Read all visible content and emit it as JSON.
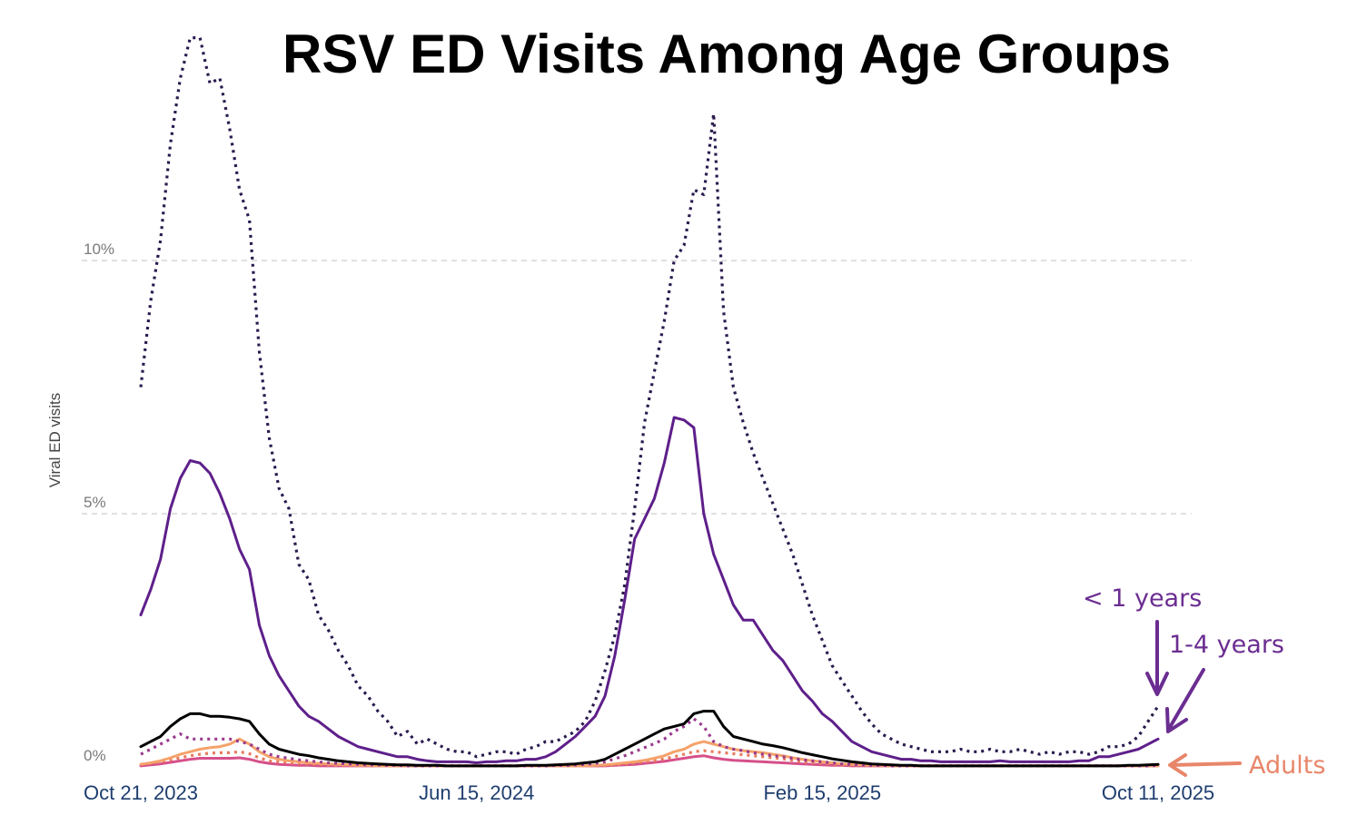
{
  "chart_data": {
    "type": "line",
    "title": "RSV ED Visits Among Age Groups",
    "ylabel": "Viral ED visits",
    "ylim": [
      0,
      14.5
    ],
    "yticks": [
      0,
      5,
      10
    ],
    "ytick_labels": [
      "0%",
      "5%",
      "10%"
    ],
    "xlim": [
      "2023-10-21",
      "2025-10-11"
    ],
    "xticks": [
      "2023-10-21",
      "2024-06-15",
      "2025-02-15",
      "2025-10-11"
    ],
    "xtick_labels": [
      "Oct 21, 2023",
      "Jun 15, 2024",
      "Feb 15, 2025",
      "Oct 11, 2025"
    ],
    "grid": true,
    "x": [
      "2023-10-21",
      "2023-10-28",
      "2023-11-04",
      "2023-11-11",
      "2023-11-18",
      "2023-11-25",
      "2023-12-02",
      "2023-12-09",
      "2023-12-16",
      "2023-12-23",
      "2023-12-30",
      "2024-01-06",
      "2024-01-13",
      "2024-01-20",
      "2024-01-27",
      "2024-02-03",
      "2024-02-10",
      "2024-02-17",
      "2024-02-24",
      "2024-03-02",
      "2024-03-09",
      "2024-03-16",
      "2024-03-23",
      "2024-03-30",
      "2024-04-06",
      "2024-04-13",
      "2024-04-20",
      "2024-04-27",
      "2024-05-04",
      "2024-05-11",
      "2024-05-18",
      "2024-05-25",
      "2024-06-01",
      "2024-06-08",
      "2024-06-15",
      "2024-06-22",
      "2024-06-29",
      "2024-07-06",
      "2024-07-13",
      "2024-07-20",
      "2024-07-27",
      "2024-08-03",
      "2024-08-10",
      "2024-08-17",
      "2024-08-24",
      "2024-08-31",
      "2024-09-07",
      "2024-09-14",
      "2024-09-21",
      "2024-09-28",
      "2024-10-05",
      "2024-10-12",
      "2024-10-19",
      "2024-10-26",
      "2024-11-02",
      "2024-11-09",
      "2024-11-16",
      "2024-11-23",
      "2024-11-30",
      "2024-12-07",
      "2024-12-14",
      "2024-12-21",
      "2024-12-28",
      "2025-01-04",
      "2025-01-11",
      "2025-01-18",
      "2025-01-25",
      "2025-02-01",
      "2025-02-08",
      "2025-02-15",
      "2025-02-22",
      "2025-03-01",
      "2025-03-08",
      "2025-03-15",
      "2025-03-22",
      "2025-03-29",
      "2025-04-05",
      "2025-04-12",
      "2025-04-19",
      "2025-04-26",
      "2025-05-03",
      "2025-05-10",
      "2025-05-17",
      "2025-05-24",
      "2025-05-31",
      "2025-06-07",
      "2025-06-14",
      "2025-06-21",
      "2025-06-28",
      "2025-07-05",
      "2025-07-12",
      "2025-07-19",
      "2025-07-26",
      "2025-08-02",
      "2025-08-09",
      "2025-08-16",
      "2025-08-23",
      "2025-08-30",
      "2025-09-06",
      "2025-09-13",
      "2025-09-20",
      "2025-09-27",
      "2025-10-04",
      "2025-10-11"
    ],
    "series": [
      {
        "name": "< 1 years",
        "color": "#2a1a4e",
        "dash": "dotted",
        "values": [
          7.5,
          9.2,
          10.4,
          12.3,
          13.6,
          14.4,
          14.4,
          13.5,
          13.6,
          12.6,
          11.4,
          10.8,
          8.2,
          6.5,
          5.5,
          5.1,
          4.0,
          3.7,
          3.0,
          2.7,
          2.3,
          2.0,
          1.6,
          1.4,
          1.1,
          0.9,
          0.6,
          0.7,
          0.45,
          0.55,
          0.45,
          0.35,
          0.3,
          0.3,
          0.2,
          0.25,
          0.3,
          0.3,
          0.25,
          0.35,
          0.4,
          0.5,
          0.5,
          0.6,
          0.7,
          0.9,
          1.3,
          1.9,
          2.6,
          3.6,
          5.1,
          6.8,
          7.8,
          8.8,
          10.0,
          10.3,
          11.4,
          11.3,
          12.9,
          9.0,
          7.5,
          6.8,
          6.2,
          5.7,
          5.2,
          4.7,
          4.2,
          3.6,
          3.0,
          2.5,
          2.0,
          1.7,
          1.4,
          1.1,
          0.85,
          0.65,
          0.55,
          0.45,
          0.4,
          0.35,
          0.3,
          0.3,
          0.3,
          0.35,
          0.3,
          0.3,
          0.35,
          0.3,
          0.3,
          0.35,
          0.3,
          0.25,
          0.3,
          0.25,
          0.3,
          0.3,
          0.25,
          0.3,
          0.4,
          0.4,
          0.45,
          0.6,
          0.9,
          1.2
        ]
      },
      {
        "name": "1-4 years",
        "color": "#5e1f8a",
        "dash": "solid",
        "values": [
          3.0,
          3.5,
          4.1,
          5.1,
          5.7,
          6.05,
          6.0,
          5.8,
          5.4,
          4.9,
          4.3,
          3.9,
          2.8,
          2.2,
          1.8,
          1.5,
          1.2,
          1.0,
          0.9,
          0.75,
          0.6,
          0.5,
          0.4,
          0.35,
          0.3,
          0.25,
          0.2,
          0.2,
          0.15,
          0.12,
          0.1,
          0.1,
          0.1,
          0.1,
          0.08,
          0.1,
          0.1,
          0.12,
          0.12,
          0.15,
          0.15,
          0.2,
          0.3,
          0.45,
          0.6,
          0.8,
          1.0,
          1.4,
          2.2,
          3.3,
          4.5,
          4.9,
          5.3,
          6.0,
          6.9,
          6.85,
          6.7,
          5.0,
          4.2,
          3.7,
          3.2,
          2.9,
          2.9,
          2.6,
          2.3,
          2.1,
          1.8,
          1.5,
          1.3,
          1.05,
          0.9,
          0.7,
          0.5,
          0.4,
          0.3,
          0.25,
          0.2,
          0.15,
          0.15,
          0.12,
          0.12,
          0.1,
          0.1,
          0.1,
          0.1,
          0.1,
          0.1,
          0.12,
          0.1,
          0.1,
          0.1,
          0.1,
          0.1,
          0.1,
          0.1,
          0.12,
          0.12,
          0.2,
          0.2,
          0.25,
          0.3,
          0.35,
          0.45,
          0.55
        ]
      },
      {
        "name": "",
        "color": "#000000",
        "dash": "solid",
        "values": [
          0.4,
          0.5,
          0.6,
          0.8,
          0.95,
          1.05,
          1.05,
          1.0,
          1.0,
          0.98,
          0.95,
          0.9,
          0.65,
          0.45,
          0.35,
          0.3,
          0.25,
          0.22,
          0.18,
          0.15,
          0.12,
          0.1,
          0.08,
          0.07,
          0.06,
          0.05,
          0.04,
          0.04,
          0.03,
          0.03,
          0.03,
          0.02,
          0.02,
          0.02,
          0.02,
          0.02,
          0.02,
          0.02,
          0.02,
          0.03,
          0.03,
          0.03,
          0.04,
          0.05,
          0.06,
          0.08,
          0.1,
          0.15,
          0.25,
          0.35,
          0.45,
          0.55,
          0.65,
          0.75,
          0.8,
          0.85,
          1.05,
          1.1,
          1.1,
          0.8,
          0.6,
          0.55,
          0.5,
          0.45,
          0.42,
          0.38,
          0.33,
          0.28,
          0.24,
          0.2,
          0.16,
          0.13,
          0.1,
          0.08,
          0.06,
          0.05,
          0.04,
          0.03,
          0.03,
          0.02,
          0.02,
          0.02,
          0.02,
          0.02,
          0.02,
          0.02,
          0.02,
          0.02,
          0.02,
          0.02,
          0.02,
          0.02,
          0.02,
          0.02,
          0.02,
          0.02,
          0.02,
          0.02,
          0.02,
          0.02,
          0.03,
          0.03,
          0.04,
          0.05
        ]
      },
      {
        "name": "",
        "color": "#9a3a8e",
        "dash": "dotted",
        "values": [
          0.25,
          0.35,
          0.45,
          0.55,
          0.65,
          0.55,
          0.55,
          0.55,
          0.55,
          0.55,
          0.5,
          0.45,
          0.35,
          0.25,
          0.2,
          0.17,
          0.14,
          0.12,
          0.1,
          0.08,
          0.07,
          0.06,
          0.05,
          0.04,
          0.04,
          0.03,
          0.03,
          0.02,
          0.02,
          0.02,
          0.02,
          0.02,
          0.02,
          0.02,
          0.02,
          0.02,
          0.02,
          0.02,
          0.02,
          0.02,
          0.02,
          0.02,
          0.03,
          0.03,
          0.04,
          0.05,
          0.07,
          0.1,
          0.16,
          0.22,
          0.3,
          0.38,
          0.46,
          0.55,
          0.7,
          0.8,
          0.95,
          0.8,
          0.5,
          0.4,
          0.35,
          0.32,
          0.28,
          0.25,
          0.22,
          0.2,
          0.17,
          0.14,
          0.12,
          0.1,
          0.08,
          0.06,
          0.05,
          0.04,
          0.03,
          0.03,
          0.02,
          0.02,
          0.02,
          0.02,
          0.02,
          0.02,
          0.02,
          0.02,
          0.02,
          0.02,
          0.02,
          0.02,
          0.02,
          0.02,
          0.02,
          0.02,
          0.02,
          0.02,
          0.02,
          0.02,
          0.02,
          0.02,
          0.02,
          0.02,
          0.02,
          0.02,
          0.02,
          0.03
        ]
      },
      {
        "name": "",
        "color": "#f5a26a",
        "dash": "solid",
        "values": [
          0.05,
          0.08,
          0.12,
          0.18,
          0.25,
          0.3,
          0.35,
          0.38,
          0.4,
          0.45,
          0.55,
          0.45,
          0.3,
          0.2,
          0.15,
          0.12,
          0.1,
          0.08,
          0.07,
          0.06,
          0.05,
          0.04,
          0.03,
          0.03,
          0.02,
          0.02,
          0.02,
          0.02,
          0.02,
          0.02,
          0.02,
          0.02,
          0.02,
          0.02,
          0.02,
          0.02,
          0.02,
          0.02,
          0.02,
          0.02,
          0.02,
          0.02,
          0.02,
          0.02,
          0.02,
          0.02,
          0.03,
          0.04,
          0.06,
          0.08,
          0.1,
          0.13,
          0.17,
          0.22,
          0.3,
          0.35,
          0.45,
          0.5,
          0.45,
          0.4,
          0.35,
          0.32,
          0.3,
          0.28,
          0.25,
          0.22,
          0.18,
          0.15,
          0.12,
          0.1,
          0.08,
          0.06,
          0.05,
          0.04,
          0.03,
          0.03,
          0.02,
          0.02,
          0.02,
          0.02,
          0.02,
          0.02,
          0.02,
          0.02,
          0.02,
          0.02,
          0.02,
          0.02,
          0.02,
          0.02,
          0.02,
          0.02,
          0.02,
          0.02,
          0.02,
          0.02,
          0.02,
          0.02,
          0.02,
          0.02,
          0.02,
          0.02,
          0.02,
          0.02
        ]
      },
      {
        "name": "",
        "color": "#e8795c",
        "dash": "dotted",
        "values": [
          0.05,
          0.07,
          0.1,
          0.14,
          0.18,
          0.22,
          0.25,
          0.27,
          0.28,
          0.28,
          0.3,
          0.26,
          0.18,
          0.12,
          0.1,
          0.08,
          0.07,
          0.06,
          0.05,
          0.04,
          0.03,
          0.03,
          0.02,
          0.02,
          0.02,
          0.02,
          0.02,
          0.02,
          0.02,
          0.02,
          0.02,
          0.02,
          0.02,
          0.02,
          0.02,
          0.02,
          0.02,
          0.02,
          0.02,
          0.02,
          0.02,
          0.02,
          0.02,
          0.02,
          0.02,
          0.02,
          0.02,
          0.03,
          0.04,
          0.06,
          0.08,
          0.1,
          0.12,
          0.16,
          0.2,
          0.25,
          0.3,
          0.32,
          0.3,
          0.28,
          0.26,
          0.24,
          0.22,
          0.2,
          0.18,
          0.16,
          0.13,
          0.1,
          0.08,
          0.07,
          0.05,
          0.04,
          0.03,
          0.03,
          0.02,
          0.02,
          0.02,
          0.02,
          0.02,
          0.02,
          0.02,
          0.02,
          0.02,
          0.02,
          0.02,
          0.02,
          0.02,
          0.02,
          0.02,
          0.02,
          0.02,
          0.02,
          0.02,
          0.02,
          0.02,
          0.02,
          0.02,
          0.02,
          0.02,
          0.02,
          0.02,
          0.02,
          0.02,
          0.02
        ]
      },
      {
        "name": "",
        "color": "#d6508a",
        "dash": "solid",
        "values": [
          0.02,
          0.04,
          0.06,
          0.09,
          0.12,
          0.15,
          0.17,
          0.17,
          0.17,
          0.17,
          0.18,
          0.15,
          0.1,
          0.07,
          0.05,
          0.04,
          0.03,
          0.03,
          0.02,
          0.02,
          0.02,
          0.02,
          0.02,
          0.02,
          0.02,
          0.02,
          0.02,
          0.02,
          0.02,
          0.02,
          0.02,
          0.02,
          0.02,
          0.02,
          0.02,
          0.02,
          0.02,
          0.02,
          0.02,
          0.02,
          0.02,
          0.02,
          0.02,
          0.02,
          0.02,
          0.02,
          0.02,
          0.02,
          0.03,
          0.04,
          0.05,
          0.07,
          0.09,
          0.11,
          0.14,
          0.17,
          0.2,
          0.22,
          0.18,
          0.15,
          0.13,
          0.12,
          0.11,
          0.1,
          0.09,
          0.08,
          0.07,
          0.06,
          0.05,
          0.04,
          0.03,
          0.03,
          0.02,
          0.02,
          0.02,
          0.02,
          0.02,
          0.02,
          0.02,
          0.02,
          0.02,
          0.02,
          0.02,
          0.02,
          0.02,
          0.02,
          0.02,
          0.02,
          0.02,
          0.02,
          0.02,
          0.02,
          0.02,
          0.02,
          0.02,
          0.02,
          0.02,
          0.02,
          0.02,
          0.02,
          0.02,
          0.02,
          0.02,
          0.02
        ]
      }
    ],
    "annotations": [
      {
        "text": "< 1 years",
        "color": "#6b2d91"
      },
      {
        "text": "1-4 years",
        "color": "#6b2d91"
      },
      {
        "text": "Adults",
        "color": "#e8866a"
      }
    ]
  }
}
